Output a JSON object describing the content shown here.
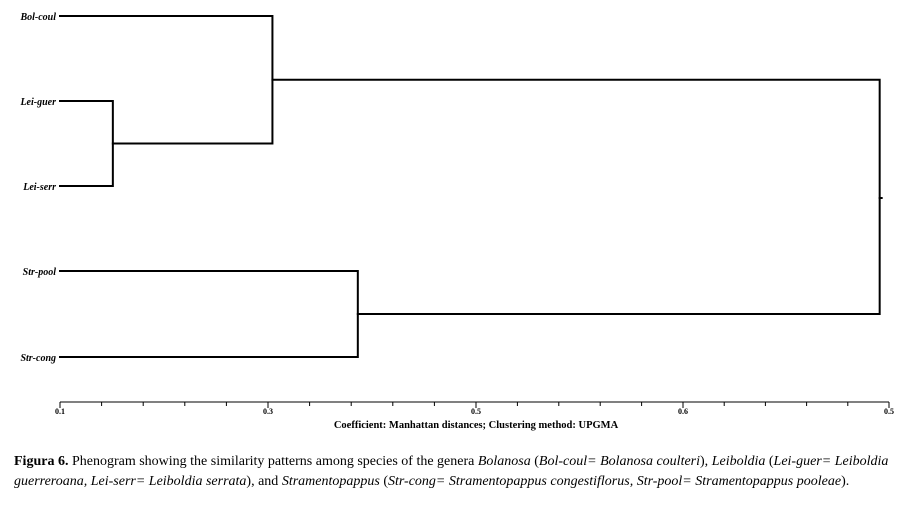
{
  "chart_data": {
    "type": "dendrogram",
    "xlabel": "Coefficient: Manhattan  distances; Clustering method: UPGMA",
    "xlim": [
      0.1,
      0.5
    ],
    "ticks": [
      "0.1",
      "0.3",
      "0.5",
      "0.6",
      "0.5"
    ],
    "leaves": [
      "Bol-coul",
      "Lei-guer",
      "Lei-serr",
      "Str-pool",
      "Str-cong"
    ],
    "merges": [
      {
        "a": "Lei-guer",
        "b": "Lei-serr",
        "height": 0.1255
      },
      {
        "a": "Bol-coul",
        "b": "Lei-guer + Lei-serr",
        "height": 0.2025
      },
      {
        "a": "Str-pool",
        "b": "Str-cong",
        "height": 0.2437
      },
      {
        "a": "Bol-coul + Lei-guer + Lei-serr",
        "b": "Str-pool + Str-cong",
        "height": 0.4955
      }
    ]
  },
  "caption": {
    "label": "Figura 6.",
    "parts": [
      {
        "t": " Phenogram showing the similarity patterns among species of the genera ",
        "i": false
      },
      {
        "t": "Bolanosa",
        "i": true
      },
      {
        "t": " (",
        "i": false
      },
      {
        "t": "Bol-coul= Bolanosa coulteri",
        "i": true
      },
      {
        "t": "), ",
        "i": false
      },
      {
        "t": "Leiboldia",
        "i": true
      },
      {
        "t": " (",
        "i": false
      },
      {
        "t": "Lei-guer= Leiboldia guerreroana, Lei-serr= Leiboldia serrata",
        "i": true
      },
      {
        "t": "), and ",
        "i": false
      },
      {
        "t": "Stramentopappus",
        "i": true
      },
      {
        "t": " (",
        "i": false
      },
      {
        "t": "Str-cong= Stramentopappus congestiflorus, Str-pool= Stramentopappus pooleae",
        "i": true
      },
      {
        "t": ").",
        "i": false
      }
    ]
  }
}
